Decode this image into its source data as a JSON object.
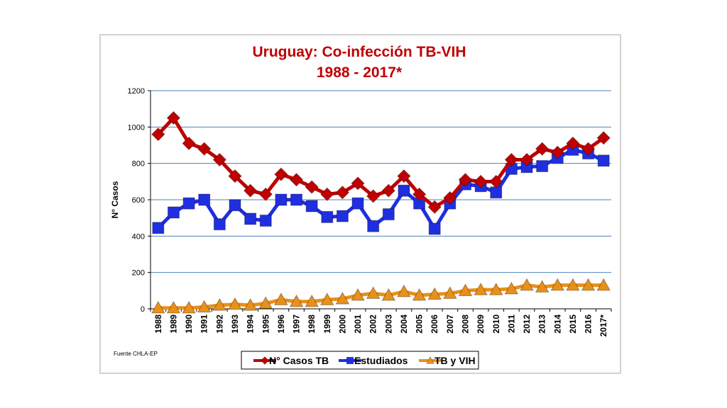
{
  "colors": {
    "title": "#c00000",
    "tb": "#c00000",
    "studied": "#1f2fe0",
    "coinf": "#e8901a",
    "grid": "#4f81bd"
  },
  "source_note": "Fuente CHLA-EP",
  "chart_data": {
    "type": "line",
    "title_line1": "Uruguay: Co-infección TB-VIH",
    "title_line2": "1988 - 2017*",
    "ylabel": "N° Casos",
    "xlabel": "",
    "ylim": [
      0,
      1200
    ],
    "yticks": [
      0,
      200,
      400,
      600,
      800,
      1000,
      1200
    ],
    "grid": true,
    "legend_position": "bottom",
    "categories": [
      "1988",
      "1989",
      "1990",
      "1991",
      "1992",
      "1993",
      "1994",
      "1995",
      "1996",
      "1997",
      "1998",
      "1999",
      "2000",
      "2001",
      "2002",
      "2003",
      "2004",
      "2005",
      "2006",
      "2007",
      "2008",
      "2009",
      "2010",
      "2011",
      "2012",
      "2013",
      "2014",
      "2015",
      "2016",
      "2017*"
    ],
    "series": [
      {
        "name": "N° Casos TB",
        "marker": "diamond",
        "values": [
          960,
          1050,
          910,
          880,
          820,
          730,
          650,
          630,
          740,
          710,
          670,
          630,
          640,
          690,
          620,
          650,
          730,
          630,
          560,
          610,
          710,
          700,
          700,
          820,
          820,
          880,
          860,
          910,
          880,
          940
        ]
      },
      {
        "name": "Estudiados",
        "marker": "square",
        "values": [
          445,
          530,
          580,
          600,
          465,
          570,
          495,
          485,
          600,
          600,
          565,
          505,
          510,
          580,
          455,
          520,
          650,
          580,
          440,
          580,
          685,
          675,
          640,
          770,
          780,
          785,
          830,
          875,
          855,
          815
        ]
      },
      {
        "name": "TB y VIH",
        "marker": "triangle",
        "values": [
          5,
          5,
          5,
          10,
          20,
          25,
          20,
          30,
          50,
          40,
          40,
          50,
          55,
          75,
          85,
          75,
          95,
          75,
          80,
          85,
          100,
          105,
          105,
          110,
          130,
          120,
          130,
          130,
          130,
          130
        ]
      }
    ]
  }
}
